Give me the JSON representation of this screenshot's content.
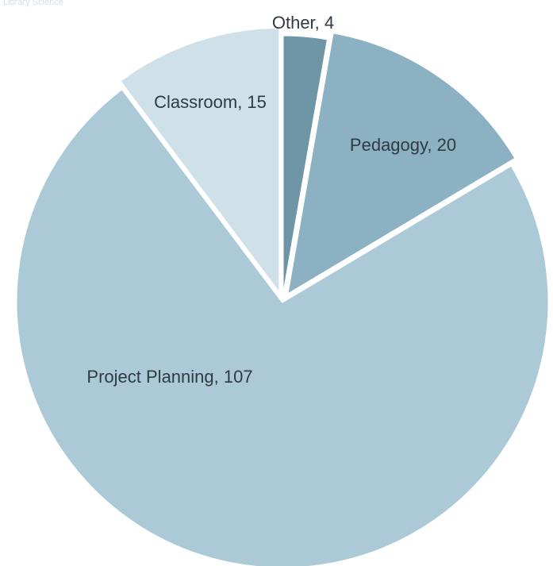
{
  "header": {
    "corner_text": "Library Science"
  },
  "chart_data": {
    "type": "pie",
    "title": "",
    "slices": [
      {
        "name": "Other",
        "value": 4,
        "label": "Other, 4",
        "color": "#6f96a7"
      },
      {
        "name": "Pedagogy",
        "value": 20,
        "label": "Pedagogy, 20",
        "color": "#8cb1c3"
      },
      {
        "name": "Project Planning",
        "value": 107,
        "label": "Project Planning, 107",
        "color": "#acc9d8"
      },
      {
        "name": "Classroom",
        "value": 15,
        "label": "Classroom, 15",
        "color": "#cfe0e9"
      }
    ],
    "start": "12 o'clock",
    "direction": "clockwise",
    "exploded": [
      "Pedagogy",
      "Classroom"
    ],
    "legend": "none"
  }
}
